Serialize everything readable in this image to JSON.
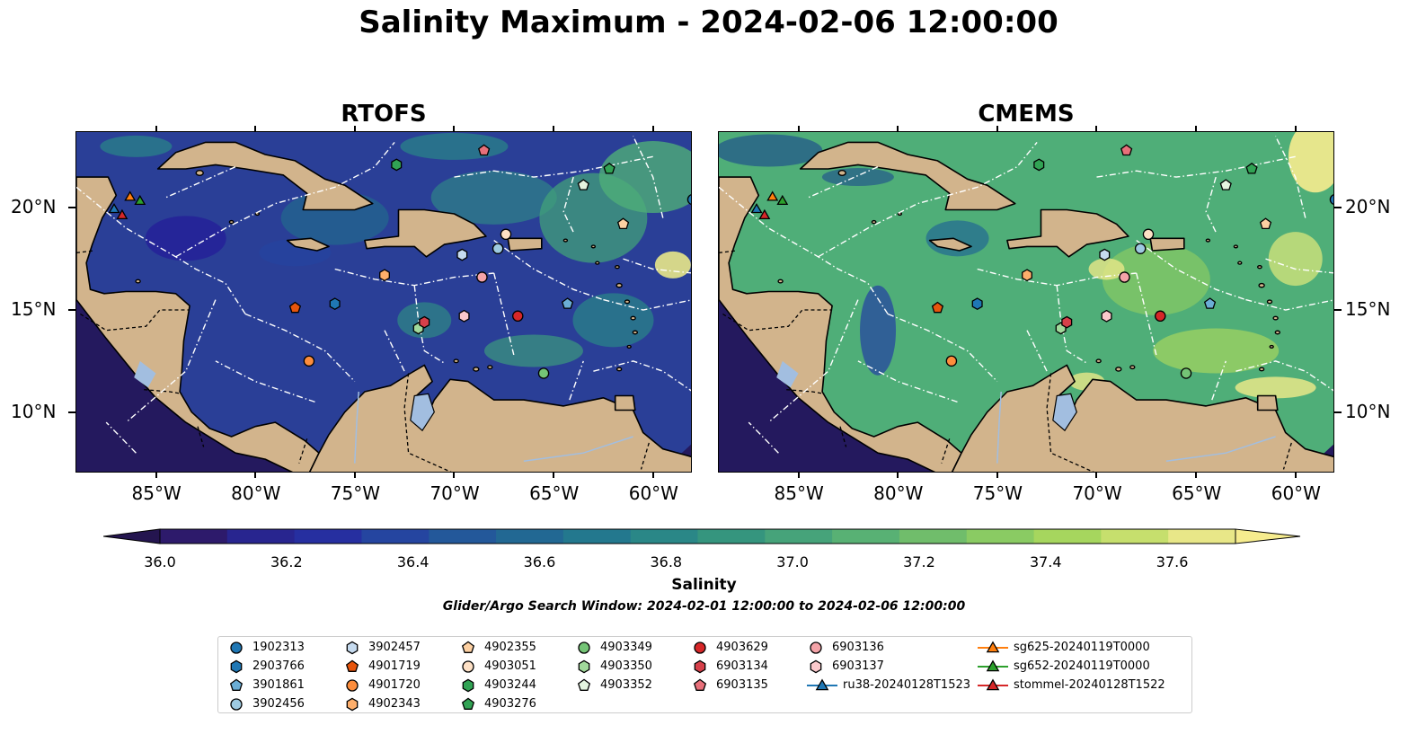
{
  "title": "Salinity Maximum - 2024-02-06 12:00:00",
  "panels": [
    {
      "title": "RTOFS"
    },
    {
      "title": "CMEMS"
    }
  ],
  "axes": {
    "x_ticks": [
      "85°W",
      "80°W",
      "75°W",
      "70°W",
      "65°W",
      "60°W"
    ],
    "y_ticks": [
      "20°N",
      "15°N",
      "10°N"
    ]
  },
  "colorbar": {
    "label": "Salinity",
    "min": 36.0,
    "max": 37.7,
    "ticks": [
      "36.0",
      "36.2",
      "36.4",
      "36.6",
      "36.8",
      "37.0",
      "37.2",
      "37.4",
      "37.6"
    ],
    "extend": "both",
    "colors": [
      "#2d1a6b",
      "#28258f",
      "#262fa0",
      "#2545a0",
      "#23589a",
      "#226893",
      "#23788e",
      "#2a8787",
      "#35957e",
      "#46a37a",
      "#58b174",
      "#70bd6b",
      "#8acb63",
      "#a6d65e",
      "#c6df6d",
      "#e8e788"
    ],
    "extend_low": "#24154f",
    "extend_high": "#f6ec8e"
  },
  "search_window": "Glider/Argo Search Window: 2024-02-01 12:00:00 to 2024-02-06 12:00:00",
  "map_colors": {
    "land": "#d2b48c",
    "ocean_rtofs": "#2a3f97",
    "ocean_cmems": "#4fae78",
    "pacific": "#24195e",
    "lakes": "#a2bee0"
  },
  "legend": [
    {
      "label": "1902313",
      "marker": "circle",
      "color": "#1f77b4"
    },
    {
      "label": "2903766",
      "marker": "hexagon",
      "color": "#1f77b4"
    },
    {
      "label": "3901861",
      "marker": "pentagon",
      "color": "#6baed6"
    },
    {
      "label": "3902456",
      "marker": "circle",
      "color": "#9ecae1"
    },
    {
      "label": "3902457",
      "marker": "hexagon",
      "color": "#c6dbef"
    },
    {
      "label": "4901719",
      "marker": "pentagon",
      "color": "#e6550d"
    },
    {
      "label": "4901720",
      "marker": "circle",
      "color": "#fd8d3c"
    },
    {
      "label": "4902343",
      "marker": "hexagon",
      "color": "#fdae6b"
    },
    {
      "label": "4902355",
      "marker": "pentagon",
      "color": "#fdd0a2"
    },
    {
      "label": "4903051",
      "marker": "circle",
      "color": "#fde0c5"
    },
    {
      "label": "4903244",
      "marker": "hexagon",
      "color": "#31a354"
    },
    {
      "label": "4903276",
      "marker": "pentagon",
      "color": "#31a354"
    },
    {
      "label": "4903349",
      "marker": "circle",
      "color": "#74c476"
    },
    {
      "label": "4903350",
      "marker": "hexagon",
      "color": "#a1d99b"
    },
    {
      "label": "4903352",
      "marker": "pentagon",
      "color": "#e5f5e0"
    },
    {
      "label": "4903629",
      "marker": "circle",
      "color": "#d62728"
    },
    {
      "label": "6903134",
      "marker": "hexagon",
      "color": "#d6404a"
    },
    {
      "label": "6903135",
      "marker": "pentagon",
      "color": "#e8707a"
    },
    {
      "label": "6903136",
      "marker": "circle",
      "color": "#f4a3a8"
    },
    {
      "label": "6903137",
      "marker": "hexagon",
      "color": "#fbc9cc"
    },
    {
      "label": "ru38-20240128T1523",
      "marker": "triangle-line",
      "color": "#1f77b4"
    },
    {
      "label": "sg625-20240119T0000",
      "marker": "triangle-line",
      "color": "#ff7f0e"
    },
    {
      "label": "sg652-20240119T0000",
      "marker": "triangle-line",
      "color": "#2ca02c"
    },
    {
      "label": "stommel-20240128T1522",
      "marker": "triangle-line",
      "color": "#d62728"
    }
  ],
  "observations": [
    {
      "id": "1902313",
      "lon": -58.0,
      "lat": 20.4
    },
    {
      "id": "2903766",
      "lon": -76.0,
      "lat": 15.3
    },
    {
      "id": "3901861",
      "lon": -64.3,
      "lat": 15.3
    },
    {
      "id": "3902456",
      "lon": -67.8,
      "lat": 18.0
    },
    {
      "id": "3902457",
      "lon": -69.6,
      "lat": 17.7
    },
    {
      "id": "4901719",
      "lon": -78.0,
      "lat": 15.1
    },
    {
      "id": "4901720",
      "lon": -77.3,
      "lat": 12.5
    },
    {
      "id": "4902343",
      "lon": -73.5,
      "lat": 16.7
    },
    {
      "id": "4902355",
      "lon": -61.5,
      "lat": 19.2
    },
    {
      "id": "4903051",
      "lon": -67.4,
      "lat": 18.7
    },
    {
      "id": "4903244",
      "lon": -72.9,
      "lat": 22.1
    },
    {
      "id": "4903276",
      "lon": -62.2,
      "lat": 21.9
    },
    {
      "id": "4903349",
      "lon": -65.5,
      "lat": 11.9
    },
    {
      "id": "4903350",
      "lon": -71.8,
      "lat": 14.1
    },
    {
      "id": "4903352",
      "lon": -63.5,
      "lat": 21.1
    },
    {
      "id": "4903629",
      "lon": -66.8,
      "lat": 14.7
    },
    {
      "id": "6903134",
      "lon": -71.5,
      "lat": 14.4
    },
    {
      "id": "6903135",
      "lon": -68.5,
      "lat": 22.8
    },
    {
      "id": "6903136",
      "lon": -68.6,
      "lat": 16.6
    },
    {
      "id": "6903137",
      "lon": -69.5,
      "lat": 14.7
    },
    {
      "id": "ru38-20240128T1523",
      "lon": -87.1,
      "lat": 19.9
    },
    {
      "id": "sg625-20240119T0000",
      "lon": -86.3,
      "lat": 20.5
    },
    {
      "id": "sg652-20240119T0000",
      "lon": -85.8,
      "lat": 20.3
    },
    {
      "id": "stommel-20240128T1522",
      "lon": -86.7,
      "lat": 19.6
    }
  ]
}
